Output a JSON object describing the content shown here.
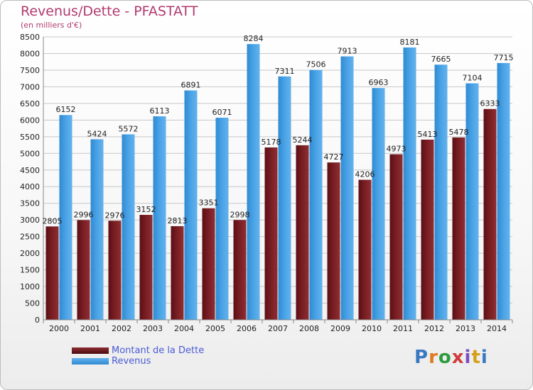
{
  "title": "Revenus/Dette - PFASTATT",
  "subtitle": "(en milliers d'€)",
  "logo": {
    "text": "Proxiti"
  },
  "colors": {
    "dette": "#7a1f24",
    "revenus": "#4aa3e6"
  },
  "chart_data": {
    "type": "bar",
    "categories": [
      "2000",
      "2001",
      "2002",
      "2003",
      "2004",
      "2005",
      "2006",
      "2007",
      "2008",
      "2009",
      "2010",
      "2011",
      "2012",
      "2013",
      "2014"
    ],
    "series": [
      {
        "name": "Montant de la Dette",
        "values": [
          2805,
          2996,
          2976,
          3152,
          2813,
          3351,
          2998,
          5178,
          5244,
          4727,
          4206,
          4973,
          5413,
          5478,
          6333
        ],
        "labels": [
          "2805",
          "2996",
          "2976",
          "3152",
          "2813",
          "3351",
          "2998",
          "5178",
          "5244",
          "4727",
          "4206",
          "4973",
          "5413",
          "5478",
          "6333"
        ]
      },
      {
        "name": "Revenus",
        "values": [
          6152,
          5424,
          5572,
          6113,
          6891,
          6071,
          8284,
          7311,
          7506,
          7913,
          6963,
          8181,
          7665,
          7104,
          7715
        ],
        "labels": [
          "6152",
          "5424",
          "5572",
          "6113",
          "6891",
          "6071",
          "8284",
          "7311",
          "7506",
          "7913",
          "6963",
          "8181",
          "7665",
          "7104",
          "7715"
        ]
      }
    ],
    "ylim": [
      0,
      8500
    ],
    "yticks": [
      0,
      500,
      1000,
      1500,
      2000,
      2500,
      3000,
      3500,
      4000,
      4500,
      5000,
      5500,
      6000,
      6500,
      7000,
      7500,
      8000,
      8500
    ],
    "grid": true,
    "legend_position": "bottom-left"
  }
}
